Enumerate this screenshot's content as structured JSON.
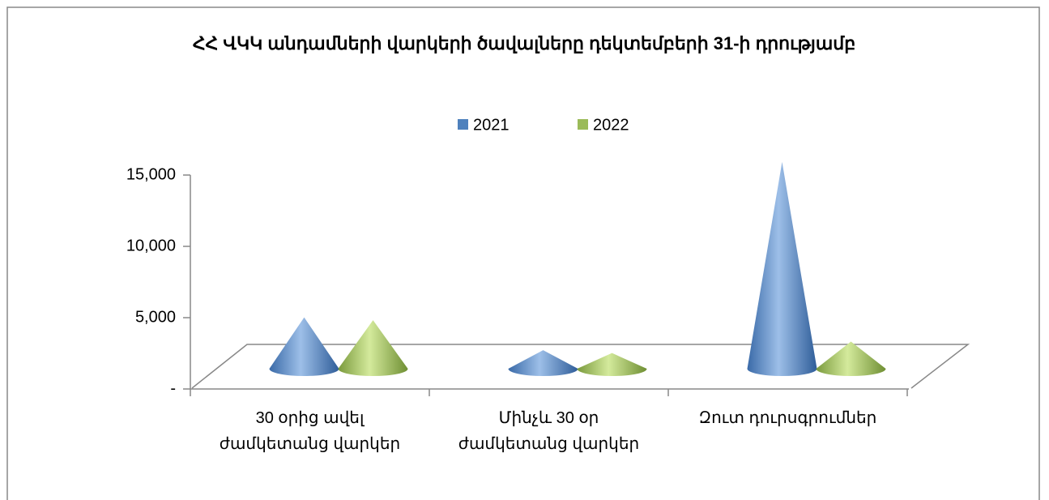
{
  "chart_data": {
    "type": "cone3d",
    "title": "ՀՀ ՎԿԿ անդամների վարկերի ծավալները դեկտեմբերի 31-ի դրությամբ",
    "categories": [
      "30 օրից ավել ժամկետանց վարկեր",
      "Մինչև 30 օր ժամկետանց վարկեր",
      "Զուտ դուրսգրումներ"
    ],
    "series": [
      {
        "name": "2021",
        "color": "#4f81bd",
        "values": [
          3600,
          1300,
          14500
        ]
      },
      {
        "name": "2022",
        "color": "#9bbb59",
        "values": [
          3400,
          1100,
          1900
        ]
      }
    ],
    "ylim": [
      0,
      15000
    ],
    "yticks": [
      {
        "value": 0,
        "label": "-"
      },
      {
        "value": 5000,
        "label": "5,000"
      },
      {
        "value": 10000,
        "label": "10,000"
      },
      {
        "value": 15000,
        "label": "15,000"
      }
    ],
    "legend": "top"
  }
}
